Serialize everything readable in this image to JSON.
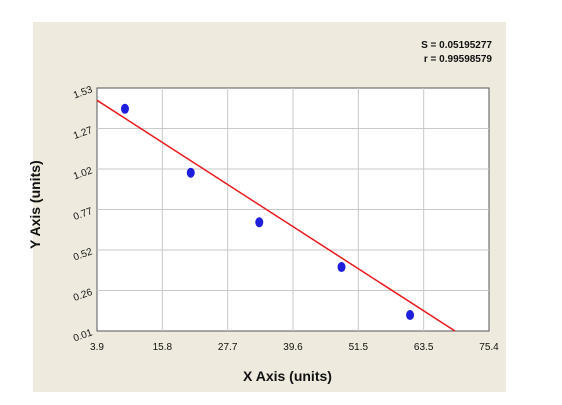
{
  "stats": {
    "s": "S = 0.05195277",
    "r": "r = 0.99598579"
  },
  "chart_data": {
    "type": "scatter",
    "title": "",
    "xlabel": "X Axis (units)",
    "ylabel": "Y Axis (units)",
    "xlim": [
      3.9,
      75.4
    ],
    "ylim": [
      0.01,
      1.53
    ],
    "x_ticks": [
      "3.9",
      "15.8",
      "27.7",
      "39.6",
      "51.5",
      "63.5",
      "75.4"
    ],
    "y_ticks": [
      "0.01",
      "0.26",
      "0.52",
      "0.77",
      "1.02",
      "1.27",
      "1.53"
    ],
    "grid": true,
    "points": [
      {
        "x": 9.0,
        "y": 1.4
      },
      {
        "x": 21.0,
        "y": 1.0
      },
      {
        "x": 33.5,
        "y": 0.69
      },
      {
        "x": 48.5,
        "y": 0.41
      },
      {
        "x": 61.0,
        "y": 0.11
      }
    ],
    "fit_line": {
      "x": [
        3.9,
        69.2
      ],
      "y": [
        1.453,
        0.01
      ]
    },
    "colors": {
      "points": "#1e1edc",
      "fit": "#e8191d",
      "grid": "#c9c9c9",
      "panel": "#eeebde"
    }
  }
}
